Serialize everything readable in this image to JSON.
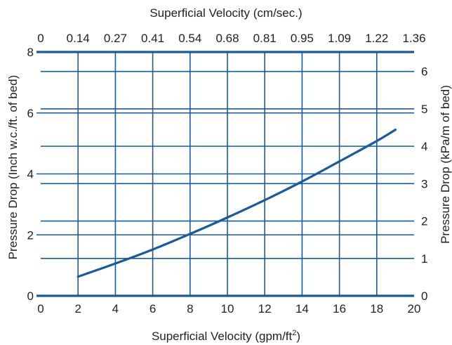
{
  "chart_data": {
    "type": "line",
    "title": "",
    "x_bottom": {
      "label": "Superficial Velocity (gpm/ft",
      "label_sup": "2",
      "label_end": ")",
      "ticks": [
        0,
        2,
        4,
        6,
        8,
        10,
        12,
        14,
        16,
        18,
        20
      ],
      "tick_labels": [
        "0",
        "2",
        "4",
        "6",
        "8",
        "10",
        "12",
        "14",
        "16",
        "18",
        "20"
      ],
      "range": [
        0,
        20
      ]
    },
    "x_top": {
      "label": "Superficial Velocity (cm/sec.)",
      "tick_labels": [
        "0",
        "0.14",
        "0.27",
        "0.41",
        "0.54",
        "0.68",
        "0.81",
        "0.95",
        "1.09",
        "1.22",
        "1.36"
      ]
    },
    "y_left": {
      "label": "Pressure Drop (Inch w.c./ft. of bed)",
      "ticks": [
        0,
        2,
        4,
        6,
        8
      ],
      "tick_labels": [
        "0",
        "2",
        "4",
        "6",
        "8"
      ],
      "range": [
        0,
        8
      ]
    },
    "y_right": {
      "label": "Pressure Drop (kPa/m of bed)",
      "ticks": [
        0,
        1,
        2,
        3,
        4,
        5,
        6
      ],
      "tick_labels": [
        "0",
        "1",
        "2",
        "3",
        "4",
        "5",
        "6"
      ],
      "range": [
        0,
        6.52
      ]
    },
    "grid": true,
    "series": [
      {
        "x": [
          2,
          4,
          6,
          8,
          10,
          12,
          14,
          16,
          18,
          19
        ],
        "y": [
          0.63,
          1.06,
          1.52,
          2.03,
          2.57,
          3.14,
          3.75,
          4.41,
          5.08,
          5.45
        ]
      }
    ],
    "colors": {
      "line": "#1a5a96",
      "text": "#231f20"
    }
  }
}
